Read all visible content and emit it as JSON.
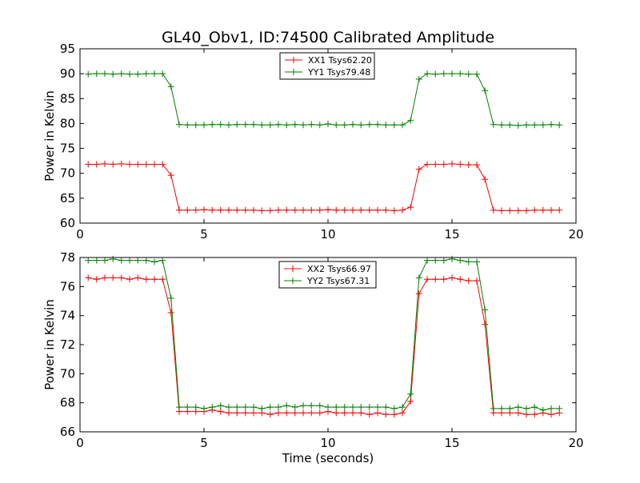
{
  "figure": {
    "title": "GL40_Obv1, ID:74500 Calibrated Amplitude",
    "xlabel": "Time (seconds)"
  },
  "chart_data": [
    {
      "type": "line",
      "title": "GL40_Obv1, ID:74500 Calibrated Amplitude",
      "xlabel": "",
      "ylabel": "Power in Kelvin",
      "xlim": [
        0,
        20
      ],
      "ylim": [
        60,
        95
      ],
      "xticks": [
        0,
        5,
        10,
        15,
        20
      ],
      "yticks": [
        60,
        65,
        70,
        75,
        80,
        85,
        90,
        95
      ],
      "legend_position": "top-center",
      "grid": false,
      "x": [
        0.33,
        0.67,
        1.0,
        1.33,
        1.67,
        2.0,
        2.33,
        2.67,
        3.0,
        3.33,
        3.67,
        4.0,
        4.33,
        4.67,
        5.0,
        5.33,
        5.67,
        6.0,
        6.33,
        6.67,
        7.0,
        7.33,
        7.67,
        8.0,
        8.33,
        8.67,
        9.0,
        9.33,
        9.67,
        10.0,
        10.33,
        10.67,
        11.0,
        11.33,
        11.67,
        12.0,
        12.33,
        12.67,
        13.0,
        13.33,
        13.67,
        14.0,
        14.33,
        14.67,
        15.0,
        15.33,
        15.67,
        16.0,
        16.33,
        16.67,
        17.0,
        17.33,
        17.67,
        18.0,
        18.33,
        18.67,
        19.0,
        19.33
      ],
      "series": [
        {
          "name": "XX1 Tsys62.20",
          "color": "#ff0000",
          "values": [
            71.8,
            71.8,
            71.9,
            71.8,
            71.9,
            71.8,
            71.8,
            71.8,
            71.8,
            71.8,
            69.6,
            62.6,
            62.6,
            62.6,
            62.7,
            62.6,
            62.6,
            62.6,
            62.6,
            62.6,
            62.6,
            62.5,
            62.5,
            62.6,
            62.6,
            62.6,
            62.6,
            62.6,
            62.6,
            62.7,
            62.6,
            62.6,
            62.6,
            62.6,
            62.6,
            62.6,
            62.6,
            62.5,
            62.6,
            63.2,
            70.8,
            71.8,
            71.8,
            71.8,
            71.9,
            71.8,
            71.7,
            71.7,
            68.8,
            62.6,
            62.5,
            62.5,
            62.5,
            62.5,
            62.6,
            62.6,
            62.6,
            62.6
          ]
        },
        {
          "name": "YY1 Tsys79.48",
          "color": "#008000",
          "values": [
            89.9,
            90.0,
            90.0,
            89.9,
            90.0,
            89.9,
            89.9,
            90.0,
            90.0,
            90.0,
            87.4,
            79.8,
            79.7,
            79.7,
            79.7,
            79.8,
            79.8,
            79.7,
            79.8,
            79.8,
            79.8,
            79.7,
            79.7,
            79.8,
            79.7,
            79.8,
            79.7,
            79.8,
            79.7,
            79.9,
            79.7,
            79.7,
            79.8,
            79.7,
            79.8,
            79.8,
            79.7,
            79.7,
            79.7,
            80.6,
            88.9,
            90.0,
            89.9,
            90.0,
            90.0,
            90.0,
            89.9,
            89.9,
            86.6,
            79.8,
            79.7,
            79.7,
            79.6,
            79.7,
            79.7,
            79.7,
            79.8,
            79.7
          ]
        }
      ]
    },
    {
      "type": "line",
      "title": "",
      "xlabel": "Time (seconds)",
      "ylabel": "Power in Kelvin",
      "xlim": [
        0,
        20
      ],
      "ylim": [
        66,
        78
      ],
      "xticks": [
        0,
        5,
        10,
        15,
        20
      ],
      "yticks": [
        66,
        68,
        70,
        72,
        74,
        76,
        78
      ],
      "legend_position": "top-center",
      "grid": false,
      "x": [
        0.33,
        0.67,
        1.0,
        1.33,
        1.67,
        2.0,
        2.33,
        2.67,
        3.0,
        3.33,
        3.67,
        4.0,
        4.33,
        4.67,
        5.0,
        5.33,
        5.67,
        6.0,
        6.33,
        6.67,
        7.0,
        7.33,
        7.67,
        8.0,
        8.33,
        8.67,
        9.0,
        9.33,
        9.67,
        10.0,
        10.33,
        10.67,
        11.0,
        11.33,
        11.67,
        12.0,
        12.33,
        12.67,
        13.0,
        13.33,
        13.67,
        14.0,
        14.33,
        14.67,
        15.0,
        15.33,
        15.67,
        16.0,
        16.33,
        16.67,
        17.0,
        17.33,
        17.67,
        18.0,
        18.33,
        18.67,
        19.0,
        19.33
      ],
      "series": [
        {
          "name": "XX2 Tsys66.97",
          "color": "#ff0000",
          "values": [
            76.6,
            76.5,
            76.6,
            76.6,
            76.6,
            76.5,
            76.6,
            76.5,
            76.5,
            76.5,
            74.2,
            67.4,
            67.4,
            67.4,
            67.4,
            67.5,
            67.4,
            67.3,
            67.3,
            67.3,
            67.3,
            67.3,
            67.2,
            67.3,
            67.3,
            67.3,
            67.3,
            67.3,
            67.3,
            67.4,
            67.3,
            67.3,
            67.3,
            67.3,
            67.2,
            67.3,
            67.2,
            67.2,
            67.3,
            68.1,
            75.5,
            76.5,
            76.5,
            76.5,
            76.6,
            76.5,
            76.4,
            76.4,
            73.4,
            67.3,
            67.3,
            67.3,
            67.3,
            67.2,
            67.2,
            67.3,
            67.2,
            67.3
          ]
        },
        {
          "name": "YY2 Tsys67.31",
          "color": "#008000",
          "values": [
            77.8,
            77.8,
            77.8,
            77.9,
            77.8,
            77.8,
            77.8,
            77.8,
            77.7,
            77.8,
            75.2,
            67.7,
            67.7,
            67.7,
            67.6,
            67.7,
            67.8,
            67.7,
            67.7,
            67.7,
            67.7,
            67.6,
            67.7,
            67.7,
            67.8,
            67.7,
            67.8,
            67.8,
            67.8,
            67.7,
            67.7,
            67.7,
            67.7,
            67.7,
            67.7,
            67.7,
            67.7,
            67.6,
            67.7,
            68.6,
            76.6,
            77.8,
            77.8,
            77.8,
            77.9,
            77.8,
            77.7,
            77.7,
            74.4,
            67.6,
            67.6,
            67.6,
            67.7,
            67.6,
            67.7,
            67.5,
            67.6,
            67.6
          ]
        }
      ]
    }
  ]
}
